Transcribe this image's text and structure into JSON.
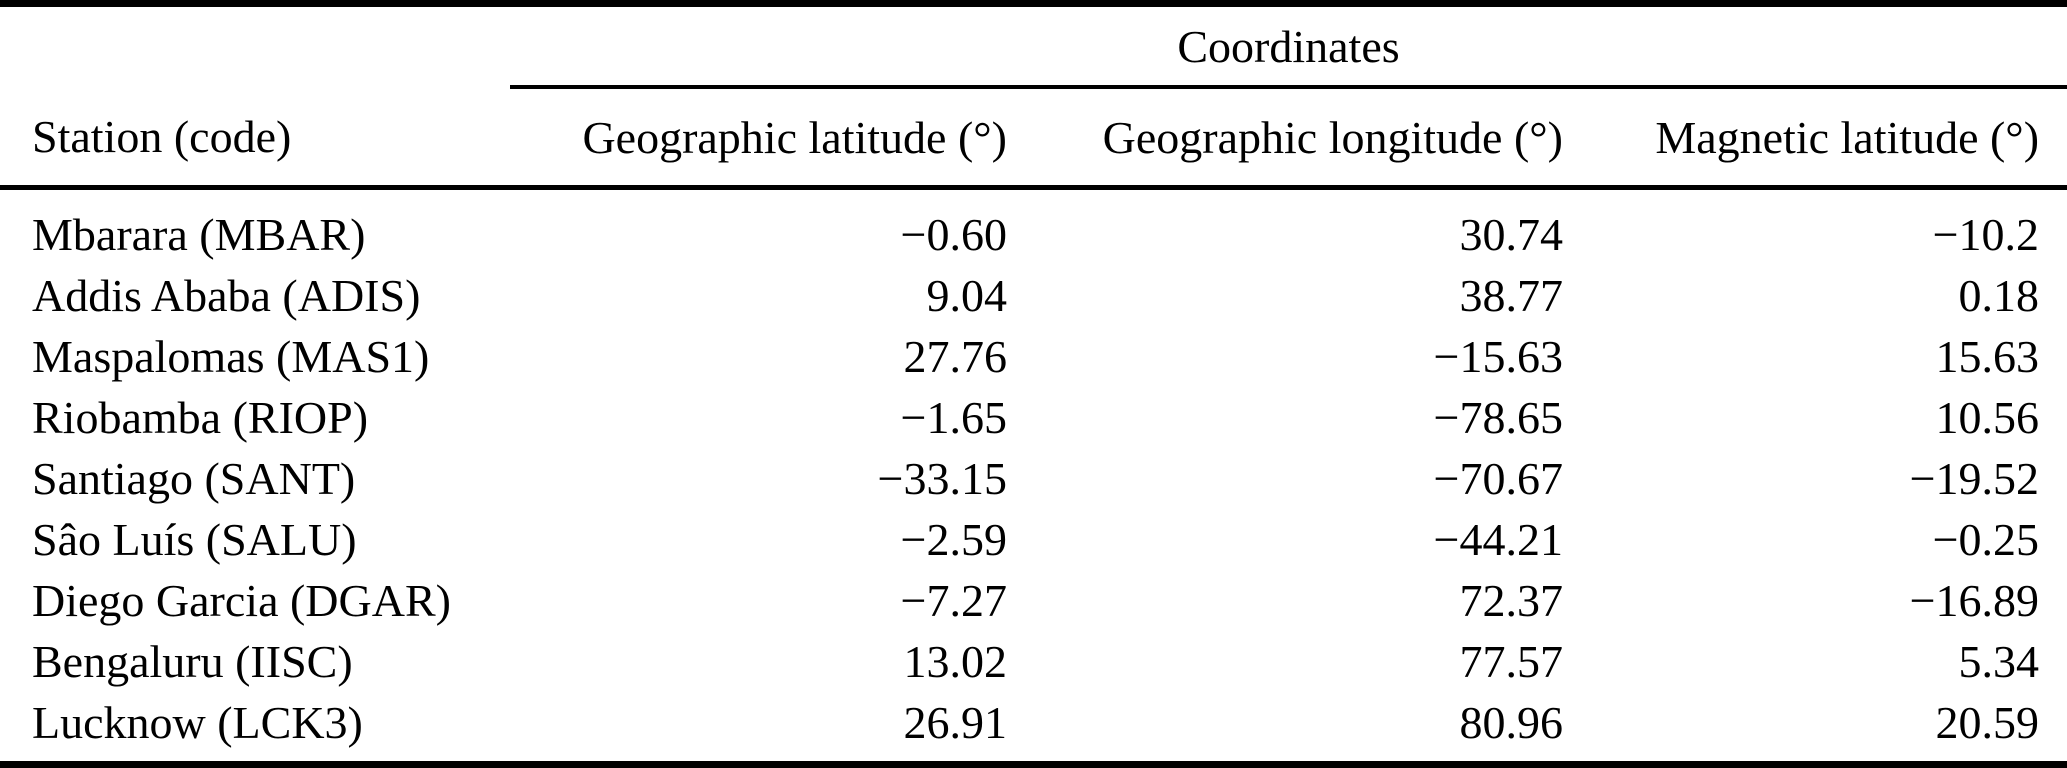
{
  "table": {
    "group_header": "Coordinates",
    "columns": [
      "Station (code)",
      "Geographic latitude (°)",
      "Geographic longitude (°)",
      "Magnetic latitude (°)"
    ],
    "rows": [
      {
        "station": "Mbarara (MBAR)",
        "geo_lat": "−0.60",
        "geo_lon": "30.74",
        "mag_lat": "−10.2"
      },
      {
        "station": "Addis Ababa (ADIS)",
        "geo_lat": "9.04",
        "geo_lon": "38.77",
        "mag_lat": "0.18"
      },
      {
        "station": "Maspalomas (MAS1)",
        "geo_lat": "27.76",
        "geo_lon": "−15.63",
        "mag_lat": "15.63"
      },
      {
        "station": "Riobamba (RIOP)",
        "geo_lat": "−1.65",
        "geo_lon": "−78.65",
        "mag_lat": "10.56"
      },
      {
        "station": "Santiago (SANT)",
        "geo_lat": "−33.15",
        "geo_lon": "−70.67",
        "mag_lat": "−19.52"
      },
      {
        "station": "Sâo Luís (SALU)",
        "geo_lat": "−2.59",
        "geo_lon": "−44.21",
        "mag_lat": "−0.25"
      },
      {
        "station": "Diego Garcia (DGAR)",
        "geo_lat": "−7.27",
        "geo_lon": "72.37",
        "mag_lat": "−16.89"
      },
      {
        "station": "Bengaluru (IISC)",
        "geo_lat": "13.02",
        "geo_lon": "77.57",
        "mag_lat": "5.34"
      },
      {
        "station": "Lucknow (LCK3)",
        "geo_lat": "26.91",
        "geo_lon": "80.96",
        "mag_lat": "20.59"
      }
    ],
    "text_color": "#000000",
    "background_color": "#ffffff"
  }
}
